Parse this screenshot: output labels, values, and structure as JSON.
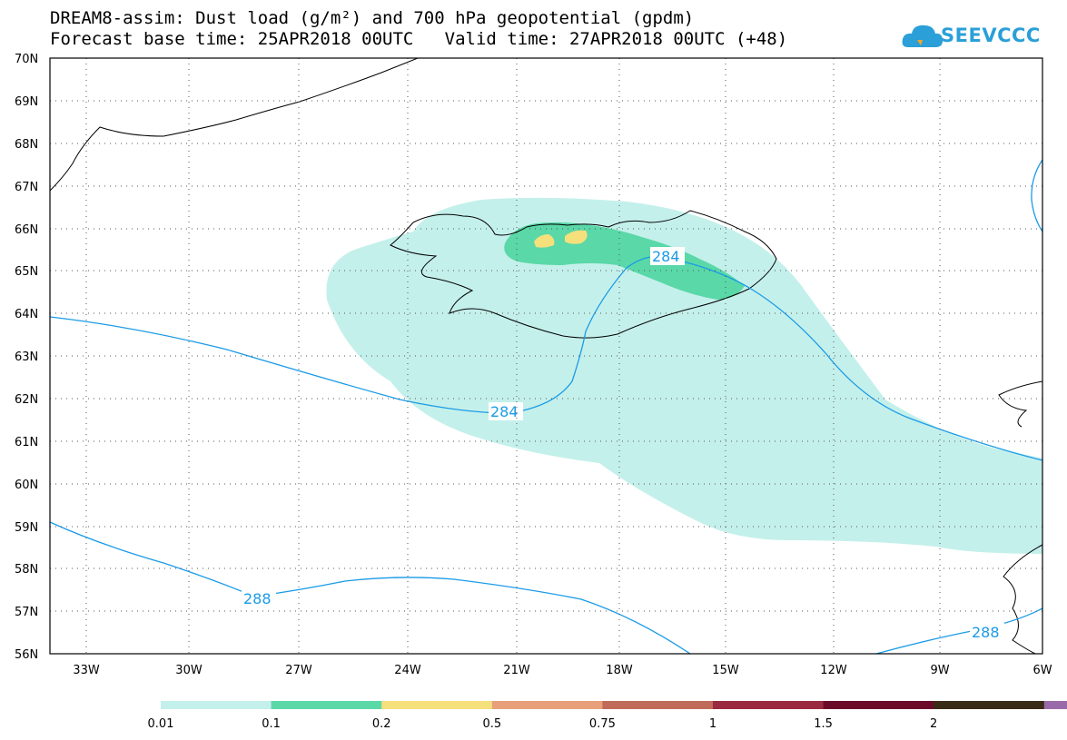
{
  "header": {
    "line1": "DREAM8-assim: Dust load (g/m²) and 700 hPa geopotential (gpdm)",
    "line2": "Forecast base time: 25APR2018 00UTC   Valid time: 27APR2018 00UTC (+48)"
  },
  "logo": {
    "text": "SEEVCCC",
    "icon": "cloud-icon"
  },
  "axes": {
    "lat_labels": [
      "70N",
      "69N",
      "68N",
      "67N",
      "66N",
      "65N",
      "64N",
      "63N",
      "62N",
      "61N",
      "60N",
      "59N",
      "58N",
      "57N",
      "56N"
    ],
    "lon_labels": [
      "33W",
      "30W",
      "27W",
      "24W",
      "21W",
      "18W",
      "15W",
      "12W",
      "9W",
      "6W"
    ]
  },
  "contours": {
    "label_284": "284",
    "label_288": "288"
  },
  "colorbar": {
    "colors": [
      "#c4f0eb",
      "#5ad8a8",
      "#f5e07c",
      "#e8a07a",
      "#c06a5a",
      "#9a2a40",
      "#6c0a2a",
      "#3a2a18",
      "#9a6aa8"
    ],
    "ticks": [
      "0.01",
      "0.1",
      "0.2",
      "0.5",
      "0.75",
      "1",
      "1.5",
      "2"
    ]
  }
}
